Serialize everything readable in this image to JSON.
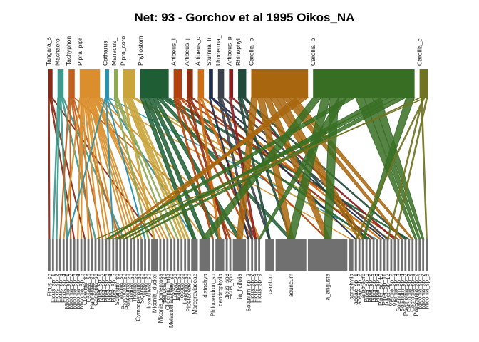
{
  "chart_data": {
    "type": "bipartite",
    "title": "Net: 93 - Gorchov et al 1995 Oikos_NA",
    "higher": [
      {
        "label": "Tangara_s",
        "weight": 1,
        "color": "#8B2A14"
      },
      {
        "label": "Machaero",
        "weight": 1.5,
        "color": "#3E9A8C"
      },
      {
        "label": "Tachyphon",
        "weight": 1.5,
        "color": "#C2601E"
      },
      {
        "label": "Pipra_pipr",
        "weight": 5,
        "color": "#DA8F2C"
      },
      {
        "label": "Catharus_",
        "weight": 1,
        "color": "#2593B0"
      },
      {
        "label": "Manacus_",
        "weight": 1,
        "color": "#8FA854"
      },
      {
        "label": "Pipra_coro",
        "weight": 3,
        "color": "#C9A43A"
      },
      {
        "label": "Phyllostom",
        "weight": 7,
        "color": "#1F5E34"
      },
      {
        "label": "Artibeus_li",
        "weight": 2,
        "color": "#B2430E"
      },
      {
        "label": "Artibeus_j",
        "weight": 1.5,
        "color": "#8E2F12"
      },
      {
        "label": "Artibeus_c",
        "weight": 1.5,
        "color": "#CF6E12"
      },
      {
        "label": "Sturnira_li",
        "weight": 1,
        "color": "#1F2C4A"
      },
      {
        "label": "Uroderma_",
        "weight": 1.5,
        "color": "#3A3F4C"
      },
      {
        "label": "Artibeus_p",
        "weight": 1,
        "color": "#8B1E1E"
      },
      {
        "label": "Rhinophyl",
        "weight": 2,
        "color": "#214A3A"
      },
      {
        "label": "Carollia_b",
        "weight": 14,
        "color": "#A8660E"
      },
      {
        "label": "Carollia_p",
        "weight": 25,
        "color": "#386E24"
      },
      {
        "label": "Carollia_c",
        "weight": 2,
        "color": "#6F7422"
      }
    ],
    "lower": [
      "Ficus_sp",
      "Ficus_sp_1",
      "Ficus_sp_2",
      "Ficus_sp_3",
      "Ficus_sp_4",
      "Miconia_sp_1",
      "Miconia_sp_2",
      "Miconia_sp_3",
      "Miconia_sp_4",
      "Miconia_sp_5",
      "Clidemia_sp",
      "Ossaea_sp",
      "Henriettea_sp",
      "Cecropia_sp",
      "Piper_sp_1",
      "Piper_sp_2",
      "Piper_sp_3",
      "Piper_sp_4",
      "Piper_sp_5",
      "Solanum_sp",
      "Vismia_sp",
      "Psychotria_sp",
      "Palicourea_sp",
      "Guarea_sp",
      "Trichilia_sp",
      "Cymbopetalum_sp",
      "Sloanea_sp",
      "Virola_sp",
      "Iryanthera_sp",
      "Miconia_duckei",
      "Miconia_tomentosa",
      "Bellucia_sp",
      "Clidemia_hirta",
      "Melastomataceae_sp",
      "Loreya_sp",
      "Mabea_sp",
      "Tococa_sp",
      "Leandra_sp",
      "Piperaceae_sp",
      "Marcgraviaceae",
      "distachya",
      "Philodendron_sp",
      "dendrophylla",
      "ficus_sp3",
      "Ficus_sp5",
      "ia_ficifolia",
      "Solanum_sp_2",
      "Ficus_sp_7",
      "Ficus_sp_8",
      "Ficus_sp_9",
      "aceae_sp_1",
      "ceratum",
      "_aduncum",
      "a_angusta",
      "acrophylla",
      "aceae_sp_1",
      "aceae_sp_2",
      "arboreum",
      "Piper_sp_6",
      "Piper_sp_7",
      "Piper_sp_8",
      "Piper_sp_9",
      "Piper_sp_10",
      "Piper_sp_11",
      "Piper_sp_12",
      "Vismia_sp_2",
      "Vismia_sp_3",
      "Solanum_sp_3",
      "Solanum_sp_4",
      "Psychotria_sp_2",
      "Cecropia_sp_2",
      "Cecropia_sp_3",
      "Palicourea_sp_2",
      "Miconia_sp_6",
      "Miconia_sp_7",
      "Miconia_sp_8"
    ],
    "lower_weights": {
      "distachya": 2.5,
      "dendrophylla": 2,
      "ia_ficifolia": 3,
      "ceratum": 2,
      "_aduncum": 7,
      "a_angusta": 9,
      "acrophylla": 1,
      "Miconia_duckei": 1.5,
      "Marcgraviaceae": 1.5
    },
    "links": [
      [
        "Tangara_s",
        "Ficus_sp"
      ],
      [
        "Tangara_s",
        "Miconia_sp_3"
      ],
      [
        "Tangara_s",
        "Clidemia_sp"
      ],
      [
        "Tangara_s",
        "Miconia_duckei"
      ],
      [
        "Machaero",
        "Ficus_sp_1"
      ],
      [
        "Machaero",
        "Ficus_sp_2"
      ],
      [
        "Machaero",
        "Miconia_sp_1"
      ],
      [
        "Machaero",
        "Cecropia_sp"
      ],
      [
        "Machaero",
        "Psychotria_sp"
      ],
      [
        "Tachyphon",
        "Ficus_sp_3"
      ],
      [
        "Tachyphon",
        "Miconia_sp_2"
      ],
      [
        "Tachyphon",
        "Henriettea_sp"
      ],
      [
        "Tachyphon",
        "Piper_sp_2"
      ],
      [
        "Tachyphon",
        "Vismia_sp"
      ],
      [
        "Tachyphon",
        "ia_ficifolia"
      ],
      [
        "Pipra_pipr",
        "Ficus_sp_4"
      ],
      [
        "Pipra_pipr",
        "Miconia_sp_4"
      ],
      [
        "Pipra_pipr",
        "Miconia_sp_5"
      ],
      [
        "Pipra_pipr",
        "Ossaea_sp"
      ],
      [
        "Pipra_pipr",
        "Piper_sp_1"
      ],
      [
        "Pipra_pipr",
        "Piper_sp_3"
      ],
      [
        "Pipra_pipr",
        "Piper_sp_4"
      ],
      [
        "Pipra_pipr",
        "Solanum_sp"
      ],
      [
        "Pipra_pipr",
        "Palicourea_sp"
      ],
      [
        "Pipra_pipr",
        "Guarea_sp"
      ],
      [
        "Pipra_pipr",
        "Trichilia_sp"
      ],
      [
        "Pipra_pipr",
        "Cymbopetalum_sp"
      ],
      [
        "Pipra_pipr",
        "Sloanea_sp"
      ],
      [
        "Pipra_pipr",
        "Miconia_tomentosa"
      ],
      [
        "Pipra_pipr",
        "Bellucia_sp"
      ],
      [
        "Pipra_pipr",
        "Clidemia_hirta"
      ],
      [
        "Pipra_pipr",
        "Loreya_sp"
      ],
      [
        "Pipra_pipr",
        "distachya"
      ],
      [
        "Pipra_pipr",
        "Solanum_sp_2"
      ],
      [
        "Pipra_pipr",
        "acrophylla"
      ],
      [
        "Catharus_",
        "Miconia_sp_1"
      ],
      [
        "Catharus_",
        "Piper_sp_5"
      ],
      [
        "Catharus_",
        "Virola_sp"
      ],
      [
        "Catharus_",
        "Marcgraviaceae"
      ],
      [
        "Catharus_",
        "Piper_sp_9"
      ],
      [
        "Manacus_",
        "Iryanthera_sp"
      ],
      [
        "Manacus_",
        "Melastomataceae_sp"
      ],
      [
        "Manacus_",
        "Mabea_sp"
      ],
      [
        "Pipra_coro",
        "Miconia_duckei"
      ],
      [
        "Pipra_coro",
        "Tococa_sp"
      ],
      [
        "Pipra_coro",
        "Leandra_sp"
      ],
      [
        "Pipra_coro",
        "Piperaceae_sp"
      ],
      [
        "Pipra_coro",
        "Marcgraviaceae"
      ],
      [
        "Pipra_coro",
        "Piper_sp_6"
      ],
      [
        "Pipra_coro",
        "Vismia_sp_2"
      ],
      [
        "Phyllostom",
        "Marcgraviaceae"
      ],
      [
        "Phyllostom",
        "distachya"
      ],
      [
        "Phyllostom",
        "dendrophylla"
      ],
      [
        "Phyllostom",
        "ia_ficifolia"
      ],
      [
        "Phyllostom",
        "_aduncum"
      ],
      [
        "Phyllostom",
        "Piper_sp_7"
      ],
      [
        "Phyllostom",
        "Cecropia_sp_2"
      ],
      [
        "Artibeus_li",
        "Philodendron_sp"
      ],
      [
        "Artibeus_li",
        "Ficus_sp5"
      ],
      [
        "Artibeus_li",
        "Ficus_sp_7"
      ],
      [
        "Artibeus_li",
        "a_angusta"
      ],
      [
        "Artibeus_li",
        "Solanum_sp_3"
      ],
      [
        "Artibeus_j",
        "ficus_sp3"
      ],
      [
        "Artibeus_j",
        "Ficus_sp_8"
      ],
      [
        "Artibeus_j",
        "Piper_sp_8"
      ],
      [
        "Artibeus_c",
        "dendrophylla"
      ],
      [
        "Artibeus_c",
        "Ficus_sp_9"
      ],
      [
        "Artibeus_c",
        "Piper_sp_10"
      ],
      [
        "Sturnira_li",
        "Solanum_sp_2"
      ],
      [
        "Sturnira_li",
        "aceae_sp_1"
      ],
      [
        "Sturnira_li",
        "Piper_sp_11"
      ],
      [
        "Uroderma_",
        "Ficus_sp_7"
      ],
      [
        "Uroderma_",
        "ceratum"
      ],
      [
        "Uroderma_",
        "Piper_sp_12"
      ],
      [
        "Artibeus_p",
        "Ficus_sp_8"
      ],
      [
        "Artibeus_p",
        "Vismia_sp_3"
      ],
      [
        "Rhinophyl",
        "ceratum"
      ],
      [
        "Rhinophyl",
        "_aduncum"
      ],
      [
        "Rhinophyl",
        "Psychotria_sp_2"
      ],
      [
        "Rhinophyl",
        "Piper_sp_6"
      ],
      [
        "Carollia_b",
        "ia_ficifolia"
      ],
      [
        "Carollia_b",
        "_aduncum"
      ],
      [
        "Carollia_b",
        "a_angusta"
      ],
      [
        "Carollia_b",
        "aceae_sp_2"
      ],
      [
        "Carollia_b",
        "arboreum"
      ],
      [
        "Carollia_b",
        "Solanum_sp_4"
      ],
      [
        "Carollia_b",
        "Cecropia_sp_3"
      ],
      [
        "Carollia_b",
        "Vismia_sp"
      ],
      [
        "Carollia_b",
        "Piper_sp_4"
      ],
      [
        "Carollia_p",
        "distachya"
      ],
      [
        "Carollia_p",
        "_aduncum"
      ],
      [
        "Carollia_p",
        "a_angusta"
      ],
      [
        "Carollia_p",
        "Ficus_sp_9"
      ],
      [
        "Carollia_p",
        "Piper_sp_3"
      ],
      [
        "Carollia_p",
        "Palicourea_sp_2"
      ],
      [
        "Carollia_p",
        "Miconia_sp_6"
      ],
      [
        "Carollia_p",
        "Miconia_sp_7"
      ],
      [
        "Carollia_p",
        "Psychotria_sp"
      ],
      [
        "Carollia_p",
        "Solanum_sp"
      ],
      [
        "Carollia_p",
        "Guarea_sp"
      ],
      [
        "Carollia_p",
        "arboreum"
      ],
      [
        "Carollia_c",
        "Piper_sp_5"
      ],
      [
        "Carollia_c",
        "Miconia_sp_8"
      ],
      [
        "Carollia_c",
        "Piper_sp_12"
      ],
      [
        "Carollia_c",
        "aceae_sp_1"
      ],
      [
        "Carollia_c",
        "Cecropia_sp"
      ],
      [
        "Carollia_c",
        "Vismia_sp_3"
      ]
    ],
    "lower_color": "#707070"
  }
}
